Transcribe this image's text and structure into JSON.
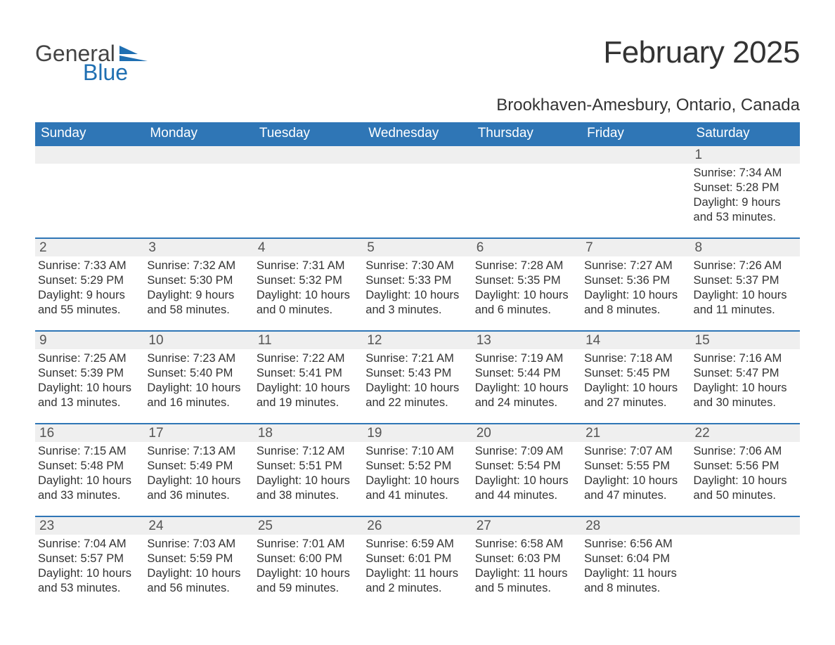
{
  "logo": {
    "part1": "General",
    "part2": "Blue",
    "text_color": "#444444",
    "accent_color": "#1f6fb2"
  },
  "title": "February 2025",
  "location": "Brookhaven-Amesbury, Ontario, Canada",
  "colors": {
    "header_bg": "#2f76b6",
    "header_text": "#ffffff",
    "daynum_bg": "#efefef",
    "daynum_text": "#555555",
    "body_text": "#333333",
    "week_border": "#2f76b6",
    "page_bg": "#ffffff"
  },
  "typography": {
    "title_fontsize": 44,
    "location_fontsize": 24,
    "weekday_fontsize": 19,
    "daynum_fontsize": 19,
    "body_fontsize": 16.5
  },
  "weekdays": [
    "Sunday",
    "Monday",
    "Tuesday",
    "Wednesday",
    "Thursday",
    "Friday",
    "Saturday"
  ],
  "weeks": [
    [
      {
        "day": "",
        "sunrise": "",
        "sunset": "",
        "daylight": ""
      },
      {
        "day": "",
        "sunrise": "",
        "sunset": "",
        "daylight": ""
      },
      {
        "day": "",
        "sunrise": "",
        "sunset": "",
        "daylight": ""
      },
      {
        "day": "",
        "sunrise": "",
        "sunset": "",
        "daylight": ""
      },
      {
        "day": "",
        "sunrise": "",
        "sunset": "",
        "daylight": ""
      },
      {
        "day": "",
        "sunrise": "",
        "sunset": "",
        "daylight": ""
      },
      {
        "day": "1",
        "sunrise": "Sunrise: 7:34 AM",
        "sunset": "Sunset: 5:28 PM",
        "daylight": "Daylight: 9 hours and 53 minutes."
      }
    ],
    [
      {
        "day": "2",
        "sunrise": "Sunrise: 7:33 AM",
        "sunset": "Sunset: 5:29 PM",
        "daylight": "Daylight: 9 hours and 55 minutes."
      },
      {
        "day": "3",
        "sunrise": "Sunrise: 7:32 AM",
        "sunset": "Sunset: 5:30 PM",
        "daylight": "Daylight: 9 hours and 58 minutes."
      },
      {
        "day": "4",
        "sunrise": "Sunrise: 7:31 AM",
        "sunset": "Sunset: 5:32 PM",
        "daylight": "Daylight: 10 hours and 0 minutes."
      },
      {
        "day": "5",
        "sunrise": "Sunrise: 7:30 AM",
        "sunset": "Sunset: 5:33 PM",
        "daylight": "Daylight: 10 hours and 3 minutes."
      },
      {
        "day": "6",
        "sunrise": "Sunrise: 7:28 AM",
        "sunset": "Sunset: 5:35 PM",
        "daylight": "Daylight: 10 hours and 6 minutes."
      },
      {
        "day": "7",
        "sunrise": "Sunrise: 7:27 AM",
        "sunset": "Sunset: 5:36 PM",
        "daylight": "Daylight: 10 hours and 8 minutes."
      },
      {
        "day": "8",
        "sunrise": "Sunrise: 7:26 AM",
        "sunset": "Sunset: 5:37 PM",
        "daylight": "Daylight: 10 hours and 11 minutes."
      }
    ],
    [
      {
        "day": "9",
        "sunrise": "Sunrise: 7:25 AM",
        "sunset": "Sunset: 5:39 PM",
        "daylight": "Daylight: 10 hours and 13 minutes."
      },
      {
        "day": "10",
        "sunrise": "Sunrise: 7:23 AM",
        "sunset": "Sunset: 5:40 PM",
        "daylight": "Daylight: 10 hours and 16 minutes."
      },
      {
        "day": "11",
        "sunrise": "Sunrise: 7:22 AM",
        "sunset": "Sunset: 5:41 PM",
        "daylight": "Daylight: 10 hours and 19 minutes."
      },
      {
        "day": "12",
        "sunrise": "Sunrise: 7:21 AM",
        "sunset": "Sunset: 5:43 PM",
        "daylight": "Daylight: 10 hours and 22 minutes."
      },
      {
        "day": "13",
        "sunrise": "Sunrise: 7:19 AM",
        "sunset": "Sunset: 5:44 PM",
        "daylight": "Daylight: 10 hours and 24 minutes."
      },
      {
        "day": "14",
        "sunrise": "Sunrise: 7:18 AM",
        "sunset": "Sunset: 5:45 PM",
        "daylight": "Daylight: 10 hours and 27 minutes."
      },
      {
        "day": "15",
        "sunrise": "Sunrise: 7:16 AM",
        "sunset": "Sunset: 5:47 PM",
        "daylight": "Daylight: 10 hours and 30 minutes."
      }
    ],
    [
      {
        "day": "16",
        "sunrise": "Sunrise: 7:15 AM",
        "sunset": "Sunset: 5:48 PM",
        "daylight": "Daylight: 10 hours and 33 minutes."
      },
      {
        "day": "17",
        "sunrise": "Sunrise: 7:13 AM",
        "sunset": "Sunset: 5:49 PM",
        "daylight": "Daylight: 10 hours and 36 minutes."
      },
      {
        "day": "18",
        "sunrise": "Sunrise: 7:12 AM",
        "sunset": "Sunset: 5:51 PM",
        "daylight": "Daylight: 10 hours and 38 minutes."
      },
      {
        "day": "19",
        "sunrise": "Sunrise: 7:10 AM",
        "sunset": "Sunset: 5:52 PM",
        "daylight": "Daylight: 10 hours and 41 minutes."
      },
      {
        "day": "20",
        "sunrise": "Sunrise: 7:09 AM",
        "sunset": "Sunset: 5:54 PM",
        "daylight": "Daylight: 10 hours and 44 minutes."
      },
      {
        "day": "21",
        "sunrise": "Sunrise: 7:07 AM",
        "sunset": "Sunset: 5:55 PM",
        "daylight": "Daylight: 10 hours and 47 minutes."
      },
      {
        "day": "22",
        "sunrise": "Sunrise: 7:06 AM",
        "sunset": "Sunset: 5:56 PM",
        "daylight": "Daylight: 10 hours and 50 minutes."
      }
    ],
    [
      {
        "day": "23",
        "sunrise": "Sunrise: 7:04 AM",
        "sunset": "Sunset: 5:57 PM",
        "daylight": "Daylight: 10 hours and 53 minutes."
      },
      {
        "day": "24",
        "sunrise": "Sunrise: 7:03 AM",
        "sunset": "Sunset: 5:59 PM",
        "daylight": "Daylight: 10 hours and 56 minutes."
      },
      {
        "day": "25",
        "sunrise": "Sunrise: 7:01 AM",
        "sunset": "Sunset: 6:00 PM",
        "daylight": "Daylight: 10 hours and 59 minutes."
      },
      {
        "day": "26",
        "sunrise": "Sunrise: 6:59 AM",
        "sunset": "Sunset: 6:01 PM",
        "daylight": "Daylight: 11 hours and 2 minutes."
      },
      {
        "day": "27",
        "sunrise": "Sunrise: 6:58 AM",
        "sunset": "Sunset: 6:03 PM",
        "daylight": "Daylight: 11 hours and 5 minutes."
      },
      {
        "day": "28",
        "sunrise": "Sunrise: 6:56 AM",
        "sunset": "Sunset: 6:04 PM",
        "daylight": "Daylight: 11 hours and 8 minutes."
      },
      {
        "day": "",
        "sunrise": "",
        "sunset": "",
        "daylight": ""
      }
    ]
  ]
}
